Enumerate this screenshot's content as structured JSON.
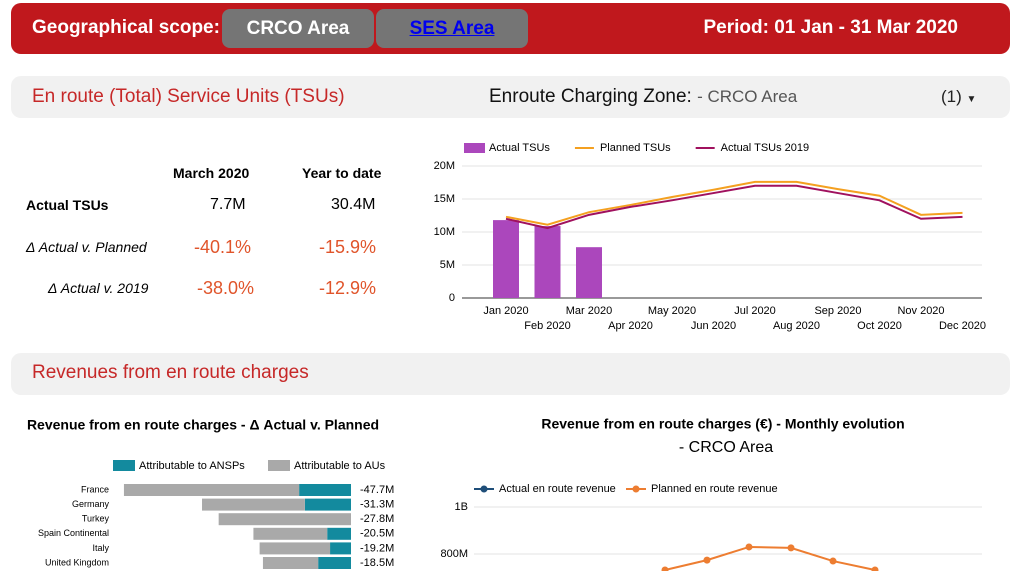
{
  "header": {
    "label": "Geographical scope:",
    "buttons": [
      "CRCO Area",
      "SES Area"
    ],
    "period": "Period: 01 Jan - 31 Mar 2020"
  },
  "sections": [
    {
      "title": "En route (Total) Service Units (TSUs)",
      "zone_label": "Enroute Charging Zone:",
      "zone_value": "- CRCO Area",
      "dropdown": "(1)"
    },
    {
      "title": "Revenues from en route charges"
    }
  ],
  "kpi": {
    "columns": [
      "March 2020",
      "Year to date"
    ],
    "rows": [
      {
        "label": "Actual TSUs",
        "cells": [
          "7.7M",
          "30.4M"
        ]
      },
      {
        "label": "Δ Actual v. Planned",
        "cells": [
          "-40.1%",
          "-15.9%"
        ]
      },
      {
        "label": "Δ Actual v. 2019",
        "cells": [
          "-38.0%",
          "-12.9%"
        ]
      }
    ]
  },
  "chart_data": [
    {
      "type": "combo",
      "categories": [
        "Jan 2020",
        "Feb 2020",
        "Mar 2020",
        "Apr 2020",
        "May 2020",
        "Jun 2020",
        "Jul 2020",
        "Aug 2020",
        "Sep 2020",
        "Oct 2020",
        "Nov 2020",
        "Dec 2020"
      ],
      "ylim": [
        0,
        20000000
      ],
      "yticks": [
        0,
        {
          "value": 5000000,
          "label": "5M"
        },
        {
          "value": 10000000,
          "label": "10M"
        },
        {
          "value": 15000000,
          "label": "15M"
        },
        {
          "value": 20000000,
          "label": "20M"
        }
      ],
      "grid": true,
      "series": [
        {
          "name": "Actual TSUs",
          "type": "bar",
          "color": "#ab47bc",
          "values": [
            11800000,
            10900000,
            7700000,
            null,
            null,
            null,
            null,
            null,
            null,
            null,
            null,
            null
          ]
        },
        {
          "name": "Planned TSUs",
          "type": "line",
          "color": "#f4a020",
          "values": [
            12300000,
            11100000,
            13000000,
            14100000,
            15300000,
            16400000,
            17600000,
            17600000,
            16500000,
            15500000,
            12600000,
            12900000
          ]
        },
        {
          "name": "Actual TSUs 2019",
          "type": "line",
          "color": "#a0115e",
          "values": [
            12000000,
            10600000,
            12600000,
            13800000,
            14800000,
            15900000,
            17000000,
            17000000,
            15900000,
            14800000,
            12000000,
            12300000
          ]
        }
      ]
    },
    {
      "type": "hbar",
      "title": "Revenue from en route charges - Δ Actual v. Planned",
      "categories": [
        "France",
        "Germany",
        "Turkey",
        "Spain Continental",
        "Italy",
        "United Kingdom"
      ],
      "xlim": [
        -50000000,
        0
      ],
      "series": [
        {
          "name": "Attributable to ANSPs",
          "color": "#138a9e",
          "values": [
            -10900000,
            -9700000,
            0,
            -5000000,
            -4400000,
            -6900000
          ]
        },
        {
          "name": "Attributable to AUs",
          "color": "#a9a9a9",
          "values": [
            -36800000,
            -21600000,
            -27800000,
            -15500000,
            -14800000,
            -11600000
          ]
        }
      ],
      "totals": {
        "values": [
          -47700000,
          -31300000,
          -27800000,
          -20500000,
          -19200000,
          -18500000
        ],
        "value_labels": [
          "-47.7M",
          "-31.3M",
          "-27.8M",
          "-20.5M",
          "-19.2M",
          "-18.5M"
        ]
      }
    },
    {
      "type": "line",
      "title": "Revenue from en route charges (€) - Monthly evolution",
      "subtitle": "- CRCO Area",
      "ylim": [
        700000000,
        1000000000
      ],
      "yticks": [
        {
          "value": 800000000,
          "label": "800M"
        },
        {
          "value": 1000000000,
          "label": "1B"
        }
      ],
      "grid": true,
      "series": [
        {
          "name": "Actual en route revenue",
          "color": "#1f4e79",
          "values": [
            null,
            null,
            null,
            null,
            null,
            null
          ]
        },
        {
          "name": "Planned en route revenue",
          "color": "#ed7d31",
          "values": [
            732000000,
            774000000,
            830000000,
            826000000,
            770000000,
            732000000
          ]
        }
      ]
    }
  ]
}
